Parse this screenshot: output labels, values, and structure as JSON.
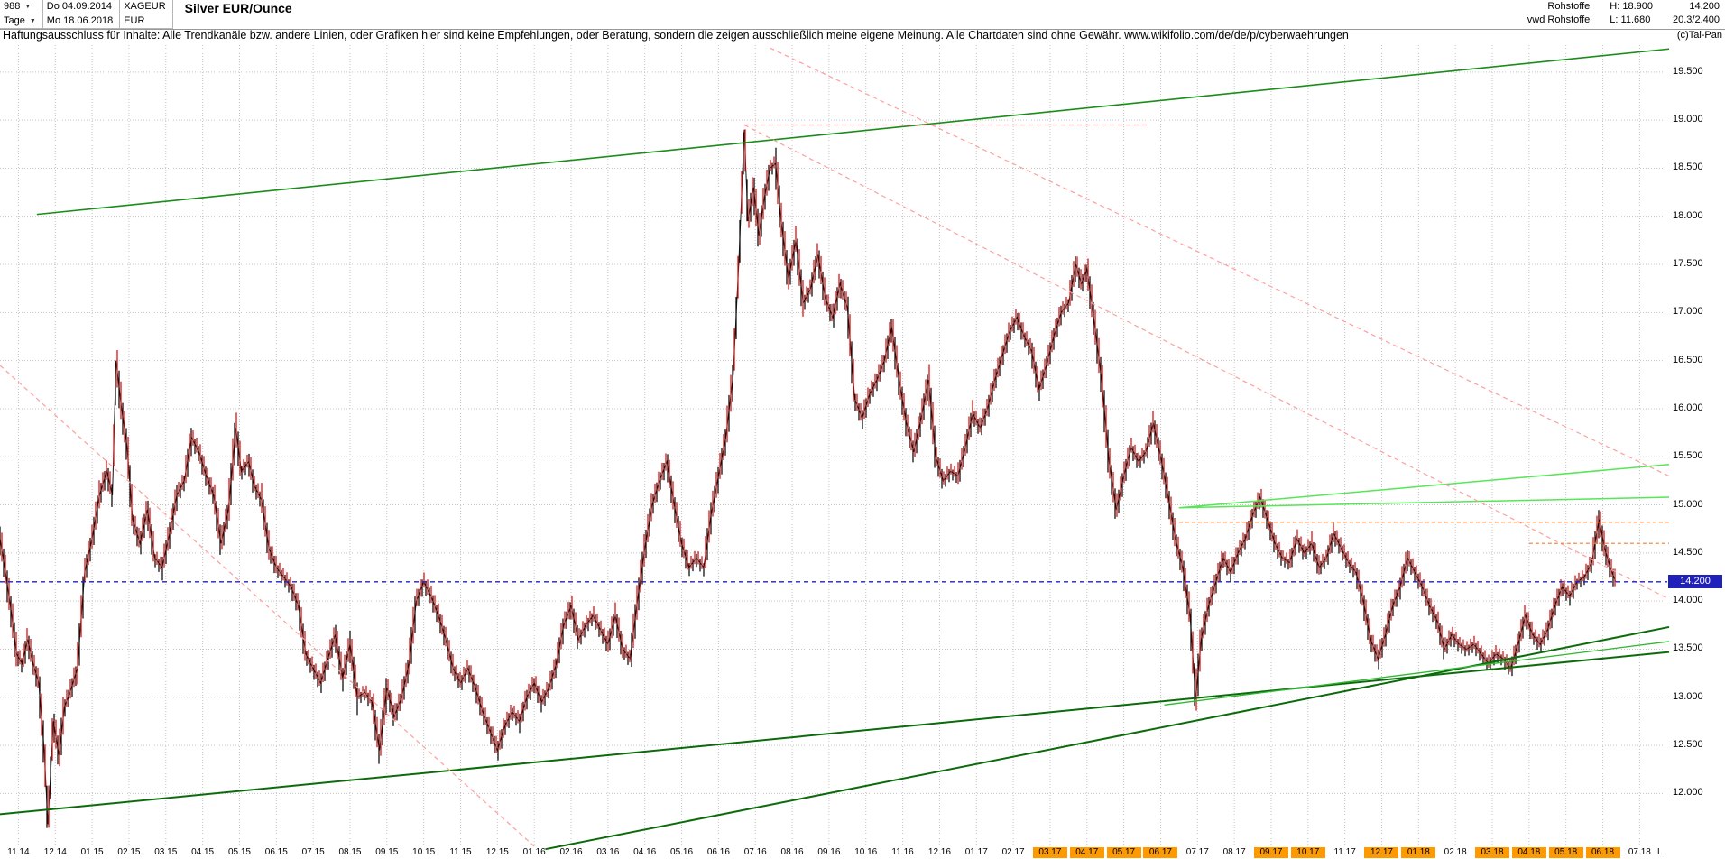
{
  "toolbar": {
    "bars_count": "988",
    "date_start": "Do 04.09.2014",
    "symbol": "XAGEUR",
    "period": "Tage",
    "date_end": "Mo 18.06.2018",
    "currency": "EUR",
    "title": "Silver EUR/Ounce"
  },
  "info": {
    "category": "Rohstoffe",
    "source": "vwd Rohstoffe",
    "high": "H: 18.900",
    "low": "L: 11.680",
    "last": "14.200",
    "extra": "20.3/2.400",
    "copyright": "(c)Tai-Pan"
  },
  "disclaimer": "Haftungsausschluss für Inhalte: Alle Trendkanäle bzw. andere Linien, oder Grafiken hier sind keine Empfehlungen, oder Beratung, sondern die zeigen ausschließlich meine eigene Meinung. Alle Chartdaten sind ohne Gewähr.  www.wikifolio.com/de/de/p/cyberwaehrungen",
  "chart_data": {
    "type": "line",
    "style": "daily OHLC bars, black with interleaved red bars",
    "title": "Silver EUR/Ounce",
    "ylabel": "EUR",
    "x_unit": "months from 2014-11",
    "ylim": [
      11.45,
      19.78
    ],
    "high": 18.9,
    "low": 11.68,
    "last": 14.2,
    "grid": true,
    "colors": {
      "bar_black": "#111111",
      "bar_red": "#e01212",
      "grid": "#c4c4c4",
      "month_highlight": "#ff9900",
      "price_line": "#2020bb",
      "trend_green_dark": "#0b6b0b",
      "trend_green_mid": "#1a8c1a",
      "trend_green_bright": "#57e657",
      "trend_pink": "#ff9e9e",
      "trend_orange": "#f08030"
    },
    "price_marker": {
      "value": 14.2,
      "label": "14.200",
      "color": "#2020bb"
    },
    "y_ticks": [
      {
        "v": 19.5,
        "label": "19.500"
      },
      {
        "v": 19.0,
        "label": "19.000"
      },
      {
        "v": 18.5,
        "label": "18.500"
      },
      {
        "v": 18.0,
        "label": "18.000"
      },
      {
        "v": 17.5,
        "label": "17.500"
      },
      {
        "v": 17.0,
        "label": "17.000"
      },
      {
        "v": 16.5,
        "label": "16.500"
      },
      {
        "v": 16.0,
        "label": "16.000"
      },
      {
        "v": 15.5,
        "label": "15.500"
      },
      {
        "v": 15.0,
        "label": "15.000"
      },
      {
        "v": 14.5,
        "label": "14.500"
      },
      {
        "v": 14.0,
        "label": "14.000"
      },
      {
        "v": 13.5,
        "label": "13.500"
      },
      {
        "v": 13.0,
        "label": "13.000"
      },
      {
        "v": 12.5,
        "label": "12.500"
      },
      {
        "v": 12.0,
        "label": "12.000"
      }
    ],
    "x_labels": [
      {
        "t": "11.14"
      },
      {
        "t": "12.14"
      },
      {
        "t": "01.15"
      },
      {
        "t": "02.15"
      },
      {
        "t": "03.15"
      },
      {
        "t": "04.15"
      },
      {
        "t": "05.15"
      },
      {
        "t": "06.15"
      },
      {
        "t": "07.15"
      },
      {
        "t": "08.15"
      },
      {
        "t": "09.15"
      },
      {
        "t": "10.15"
      },
      {
        "t": "11.15"
      },
      {
        "t": "12.15"
      },
      {
        "t": "01.16"
      },
      {
        "t": "02.16"
      },
      {
        "t": "03.16"
      },
      {
        "t": "04.16"
      },
      {
        "t": "05.16"
      },
      {
        "t": "06.16"
      },
      {
        "t": "07.16"
      },
      {
        "t": "08.16"
      },
      {
        "t": "09.16"
      },
      {
        "t": "10.16"
      },
      {
        "t": "11.16"
      },
      {
        "t": "12.16"
      },
      {
        "t": "01.17"
      },
      {
        "t": "02.17"
      },
      {
        "t": "03.17",
        "hl": true
      },
      {
        "t": "04.17",
        "hl": true
      },
      {
        "t": "05.17",
        "hl": true
      },
      {
        "t": "06.17",
        "hl": true
      },
      {
        "t": "07.17"
      },
      {
        "t": "08.17"
      },
      {
        "t": "09.17",
        "hl": true
      },
      {
        "t": "10.17",
        "hl": true
      },
      {
        "t": "11.17"
      },
      {
        "t": "12.17",
        "hl": true
      },
      {
        "t": "01.18",
        "hl": true
      },
      {
        "t": "02.18"
      },
      {
        "t": "03.18",
        "hl": true
      },
      {
        "t": "04.18",
        "hl": true
      },
      {
        "t": "05.18",
        "hl": true
      },
      {
        "t": "06.18",
        "hl": true
      },
      {
        "t": "07.18"
      },
      {
        "t": "L",
        "m": 45.05
      }
    ],
    "series": [
      [
        0,
        14.65
      ],
      [
        0.15,
        14.3
      ],
      [
        0.3,
        13.9
      ],
      [
        0.45,
        13.45
      ],
      [
        0.6,
        13.35
      ],
      [
        0.75,
        13.6
      ],
      [
        0.9,
        13.35
      ],
      [
        1.05,
        13.15
      ],
      [
        1.2,
        12.45
      ],
      [
        1.3,
        11.68
      ],
      [
        1.45,
        12.75
      ],
      [
        1.6,
        12.4
      ],
      [
        1.75,
        12.9
      ],
      [
        1.9,
        13.05
      ],
      [
        2.1,
        13.3
      ],
      [
        2.3,
        14.3
      ],
      [
        2.5,
        14.65
      ],
      [
        2.7,
        15.1
      ],
      [
        2.9,
        15.35
      ],
      [
        3.05,
        15.1
      ],
      [
        3.15,
        16.5
      ],
      [
        3.3,
        16.0
      ],
      [
        3.45,
        15.6
      ],
      [
        3.6,
        14.85
      ],
      [
        3.8,
        14.6
      ],
      [
        4.0,
        14.95
      ],
      [
        4.2,
        14.45
      ],
      [
        4.4,
        14.35
      ],
      [
        4.6,
        14.7
      ],
      [
        4.8,
        15.1
      ],
      [
        5.0,
        15.25
      ],
      [
        5.2,
        15.7
      ],
      [
        5.4,
        15.55
      ],
      [
        5.6,
        15.3
      ],
      [
        5.8,
        15.1
      ],
      [
        6.0,
        14.6
      ],
      [
        6.2,
        14.95
      ],
      [
        6.4,
        15.8
      ],
      [
        6.55,
        15.35
      ],
      [
        6.75,
        15.45
      ],
      [
        6.9,
        15.2
      ],
      [
        7.1,
        15.05
      ],
      [
        7.3,
        14.55
      ],
      [
        7.5,
        14.35
      ],
      [
        7.7,
        14.25
      ],
      [
        7.9,
        14.15
      ],
      [
        8.1,
        13.95
      ],
      [
        8.3,
        13.45
      ],
      [
        8.5,
        13.3
      ],
      [
        8.7,
        13.15
      ],
      [
        8.9,
        13.4
      ],
      [
        9.1,
        13.65
      ],
      [
        9.3,
        13.2
      ],
      [
        9.5,
        13.55
      ],
      [
        9.7,
        13.0
      ],
      [
        9.9,
        13.05
      ],
      [
        10.1,
        12.95
      ],
      [
        10.3,
        12.45
      ],
      [
        10.5,
        13.1
      ],
      [
        10.7,
        12.8
      ],
      [
        10.9,
        13.0
      ],
      [
        11.1,
        13.35
      ],
      [
        11.3,
        14.0
      ],
      [
        11.5,
        14.2
      ],
      [
        11.7,
        14.05
      ],
      [
        11.9,
        13.85
      ],
      [
        12.1,
        13.6
      ],
      [
        12.3,
        13.3
      ],
      [
        12.5,
        13.15
      ],
      [
        12.7,
        13.3
      ],
      [
        12.9,
        13.1
      ],
      [
        13.1,
        12.85
      ],
      [
        13.3,
        12.65
      ],
      [
        13.5,
        12.45
      ],
      [
        13.7,
        12.7
      ],
      [
        13.9,
        12.85
      ],
      [
        14.1,
        12.75
      ],
      [
        14.3,
        13.0
      ],
      [
        14.5,
        13.15
      ],
      [
        14.7,
        12.95
      ],
      [
        14.9,
        13.1
      ],
      [
        15.1,
        13.35
      ],
      [
        15.3,
        13.75
      ],
      [
        15.5,
        13.95
      ],
      [
        15.7,
        13.6
      ],
      [
        15.9,
        13.75
      ],
      [
        16.1,
        13.85
      ],
      [
        16.3,
        13.7
      ],
      [
        16.5,
        13.55
      ],
      [
        16.7,
        13.85
      ],
      [
        16.9,
        13.5
      ],
      [
        17.1,
        13.4
      ],
      [
        17.3,
        14.0
      ],
      [
        17.5,
        14.55
      ],
      [
        17.7,
        15.0
      ],
      [
        17.9,
        15.25
      ],
      [
        18.1,
        15.45
      ],
      [
        18.3,
        15.0
      ],
      [
        18.5,
        14.6
      ],
      [
        18.7,
        14.35
      ],
      [
        18.9,
        14.45
      ],
      [
        19.1,
        14.35
      ],
      [
        19.3,
        14.9
      ],
      [
        19.5,
        15.3
      ],
      [
        19.7,
        15.7
      ],
      [
        19.9,
        16.35
      ],
      [
        20.05,
        17.5
      ],
      [
        20.2,
        18.9
      ],
      [
        20.3,
        17.95
      ],
      [
        20.45,
        18.3
      ],
      [
        20.6,
        17.8
      ],
      [
        20.75,
        18.2
      ],
      [
        20.9,
        18.5
      ],
      [
        21.05,
        18.55
      ],
      [
        21.2,
        17.95
      ],
      [
        21.4,
        17.35
      ],
      [
        21.6,
        17.75
      ],
      [
        21.8,
        17.1
      ],
      [
        22.0,
        17.25
      ],
      [
        22.2,
        17.6
      ],
      [
        22.4,
        17.15
      ],
      [
        22.6,
        16.95
      ],
      [
        22.8,
        17.3
      ],
      [
        23.0,
        17.05
      ],
      [
        23.2,
        16.1
      ],
      [
        23.4,
        15.9
      ],
      [
        23.6,
        16.15
      ],
      [
        23.8,
        16.3
      ],
      [
        24.0,
        16.5
      ],
      [
        24.2,
        16.85
      ],
      [
        24.4,
        16.3
      ],
      [
        24.6,
        15.85
      ],
      [
        24.8,
        15.55
      ],
      [
        25.0,
        15.9
      ],
      [
        25.2,
        16.3
      ],
      [
        25.4,
        15.5
      ],
      [
        25.6,
        15.25
      ],
      [
        25.8,
        15.35
      ],
      [
        26.0,
        15.3
      ],
      [
        26.2,
        15.6
      ],
      [
        26.4,
        15.95
      ],
      [
        26.6,
        15.8
      ],
      [
        26.8,
        16.0
      ],
      [
        27.0,
        16.3
      ],
      [
        27.2,
        16.55
      ],
      [
        27.4,
        16.8
      ],
      [
        27.6,
        16.95
      ],
      [
        27.8,
        16.75
      ],
      [
        28.0,
        16.6
      ],
      [
        28.2,
        16.2
      ],
      [
        28.4,
        16.45
      ],
      [
        28.6,
        16.75
      ],
      [
        28.8,
        17.0
      ],
      [
        29.0,
        17.1
      ],
      [
        29.2,
        17.5
      ],
      [
        29.35,
        17.3
      ],
      [
        29.5,
        17.45
      ],
      [
        29.7,
        16.9
      ],
      [
        29.9,
        16.3
      ],
      [
        30.1,
        15.45
      ],
      [
        30.3,
        14.95
      ],
      [
        30.5,
        15.3
      ],
      [
        30.7,
        15.6
      ],
      [
        30.9,
        15.45
      ],
      [
        31.1,
        15.55
      ],
      [
        31.3,
        15.85
      ],
      [
        31.5,
        15.5
      ],
      [
        31.7,
        15.1
      ],
      [
        31.9,
        14.65
      ],
      [
        32.1,
        14.35
      ],
      [
        32.3,
        13.85
      ],
      [
        32.45,
        12.98
      ],
      [
        32.6,
        13.6
      ],
      [
        32.8,
        13.95
      ],
      [
        33.0,
        14.2
      ],
      [
        33.2,
        14.45
      ],
      [
        33.4,
        14.3
      ],
      [
        33.6,
        14.5
      ],
      [
        33.8,
        14.65
      ],
      [
        34.0,
        14.9
      ],
      [
        34.2,
        15.08
      ],
      [
        34.4,
        14.85
      ],
      [
        34.6,
        14.6
      ],
      [
        34.8,
        14.45
      ],
      [
        35.0,
        14.4
      ],
      [
        35.2,
        14.65
      ],
      [
        35.4,
        14.5
      ],
      [
        35.6,
        14.6
      ],
      [
        35.8,
        14.35
      ],
      [
        36.0,
        14.45
      ],
      [
        36.2,
        14.7
      ],
      [
        36.4,
        14.55
      ],
      [
        36.6,
        14.4
      ],
      [
        36.8,
        14.3
      ],
      [
        37.0,
        14.0
      ],
      [
        37.2,
        13.6
      ],
      [
        37.4,
        13.4
      ],
      [
        37.6,
        13.65
      ],
      [
        37.8,
        13.95
      ],
      [
        38.0,
        14.15
      ],
      [
        38.2,
        14.45
      ],
      [
        38.4,
        14.3
      ],
      [
        38.6,
        14.15
      ],
      [
        38.8,
        13.95
      ],
      [
        39.0,
        13.8
      ],
      [
        39.2,
        13.5
      ],
      [
        39.4,
        13.65
      ],
      [
        39.6,
        13.55
      ],
      [
        39.8,
        13.5
      ],
      [
        40.0,
        13.55
      ],
      [
        40.2,
        13.45
      ],
      [
        40.4,
        13.35
      ],
      [
        40.6,
        13.45
      ],
      [
        40.8,
        13.4
      ],
      [
        41.0,
        13.3
      ],
      [
        41.2,
        13.55
      ],
      [
        41.4,
        13.85
      ],
      [
        41.6,
        13.65
      ],
      [
        41.8,
        13.55
      ],
      [
        42.0,
        13.7
      ],
      [
        42.2,
        13.95
      ],
      [
        42.4,
        14.15
      ],
      [
        42.6,
        14.05
      ],
      [
        42.8,
        14.2
      ],
      [
        43.0,
        14.25
      ],
      [
        43.2,
        14.4
      ],
      [
        43.4,
        14.85
      ],
      [
        43.55,
        14.55
      ],
      [
        43.7,
        14.35
      ],
      [
        43.85,
        14.2
      ]
    ],
    "trend_lines": [
      {
        "name": "upper-channel-green",
        "m1": 1.0,
        "p1": 18.02,
        "m2": 45.3,
        "p2": 19.74,
        "color": "#1a8c1a",
        "width": 1.6
      },
      {
        "name": "support-long-green",
        "m1": -0.1,
        "p1": 11.78,
        "m2": 45.3,
        "p2": 13.47,
        "color": "#0b6b0b",
        "width": 2
      },
      {
        "name": "support-steep-green",
        "m1": 14.8,
        "p1": 11.42,
        "m2": 45.3,
        "p2": 13.73,
        "color": "#0b6b0b",
        "width": 2
      },
      {
        "name": "support-minor-green",
        "m1": 31.6,
        "p1": 12.92,
        "m2": 45.3,
        "p2": 13.58,
        "color": "#2eb82e",
        "width": 1.3
      },
      {
        "name": "resistance-bright-upper",
        "m1": 32.0,
        "p1": 14.97,
        "m2": 45.3,
        "p2": 15.42,
        "color": "#57e657",
        "width": 1.5
      },
      {
        "name": "resistance-bright-lower",
        "m1": 32.0,
        "p1": 14.97,
        "m2": 45.3,
        "p2": 15.08,
        "color": "#57e657",
        "width": 1.5
      },
      {
        "name": "downtrend-2015",
        "m1": 0,
        "p1": 16.45,
        "m2": 14.5,
        "p2": 11.45,
        "color": "#ff9e9e",
        "width": 1.2,
        "dash": "5 4"
      },
      {
        "name": "downtrend-major",
        "m1": 20.2,
        "p1": 18.95,
        "m2": 45.3,
        "p2": 14.02,
        "color": "#ff9e9e",
        "width": 1.2,
        "dash": "5 4"
      },
      {
        "name": "downtrend-upper",
        "m1": 20.9,
        "p1": 19.75,
        "m2": 45.3,
        "p2": 15.3,
        "color": "#ff9e9e",
        "width": 1.2,
        "dash": "5 4"
      },
      {
        "name": "high-horizontal",
        "m1": 20.2,
        "p1": 18.95,
        "m2": 31.2,
        "p2": 18.95,
        "color": "#ff9e9e",
        "width": 1.2,
        "dash": "5 4"
      },
      {
        "name": "resistance-orange-1",
        "m1": 32.0,
        "p1": 14.82,
        "m2": 45.3,
        "p2": 14.82,
        "color": "#f08030",
        "width": 1.2,
        "dash": "4 3"
      },
      {
        "name": "resistance-orange-2",
        "m1": 41.5,
        "p1": 14.6,
        "m2": 45.3,
        "p2": 14.6,
        "color": "#f08030",
        "width": 1.2,
        "dash": "4 3"
      },
      {
        "name": "current-price-line",
        "m1": 0,
        "p1": 14.2,
        "m2": 45.25,
        "p2": 14.2,
        "color": "#2020bb",
        "width": 1.4,
        "dash": "5 4"
      }
    ]
  }
}
